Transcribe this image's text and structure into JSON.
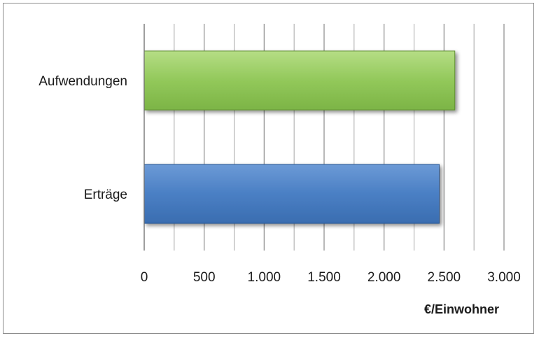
{
  "chart_data": {
    "type": "bar",
    "orientation": "horizontal",
    "categories": [
      "Aufwendungen",
      "Erträge"
    ],
    "series": [
      {
        "values": [
          2590,
          2460
        ]
      }
    ],
    "bar_colors": [
      "#92c85a",
      "#4a7fc4"
    ],
    "xlabel": "€/Einwohner",
    "ylabel": "",
    "title": "",
    "xlim": [
      0,
      3000
    ],
    "major_ticks": [
      0,
      500,
      1000,
      1500,
      2000,
      2500,
      3000
    ],
    "tick_labels": [
      "0",
      "500",
      "1.000",
      "1.500",
      "2.000",
      "2.500",
      "3.000"
    ],
    "minor_gridlines": true,
    "grid": true,
    "legend": "none"
  }
}
